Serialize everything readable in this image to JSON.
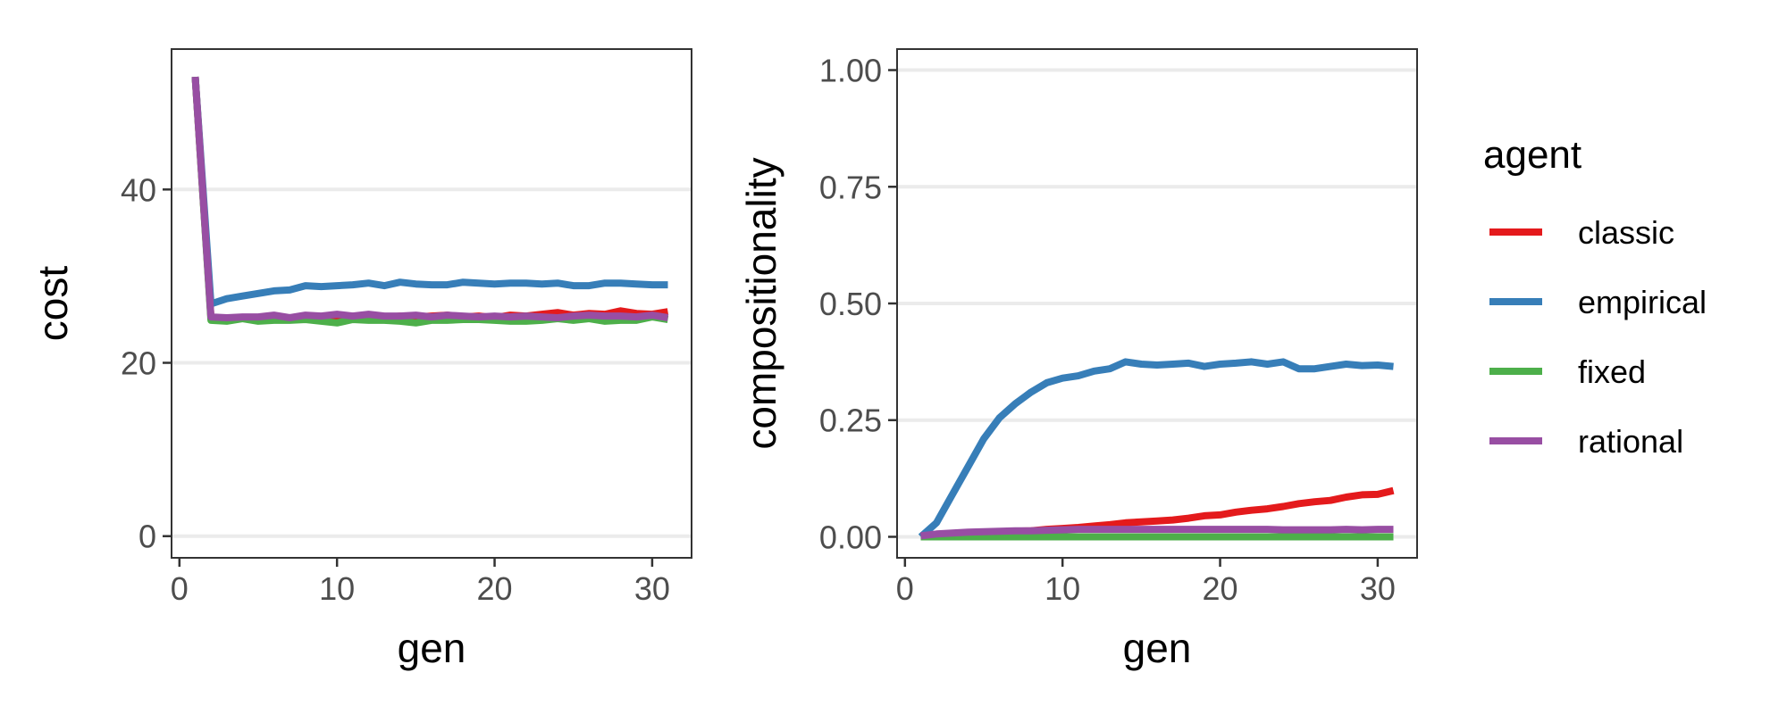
{
  "chart_data": [
    {
      "type": "line",
      "xlabel": "gen",
      "ylabel": "cost",
      "xlim": [
        -0.5,
        32.5
      ],
      "ylim": [
        -2.5,
        56.2
      ],
      "xticks": [
        0,
        10,
        20,
        30
      ],
      "yticks": [
        0,
        20,
        40
      ],
      "grid": true,
      "x": [
        1,
        2,
        3,
        4,
        5,
        6,
        7,
        8,
        9,
        10,
        11,
        12,
        13,
        14,
        15,
        16,
        17,
        18,
        19,
        20,
        21,
        22,
        23,
        24,
        25,
        26,
        27,
        28,
        29,
        30,
        31
      ],
      "series": [
        {
          "name": "classic",
          "color": "#E41A1C",
          "values": [
            53,
            25.2,
            25.1,
            25.2,
            25.0,
            25.3,
            25.1,
            25.2,
            25.3,
            25.4,
            25.1,
            25.3,
            25.2,
            25.4,
            25.3,
            25.4,
            25.5,
            25.3,
            25.4,
            25.2,
            25.5,
            25.4,
            25.6,
            25.8,
            25.5,
            25.7,
            25.6,
            26.0,
            25.7,
            25.6,
            25.9
          ]
        },
        {
          "name": "empirical",
          "color": "#377EB8",
          "values": [
            53,
            26.8,
            27.4,
            27.7,
            28.0,
            28.3,
            28.4,
            28.9,
            28.8,
            28.9,
            29.0,
            29.2,
            28.9,
            29.3,
            29.1,
            29.0,
            29.0,
            29.3,
            29.2,
            29.1,
            29.2,
            29.2,
            29.1,
            29.2,
            28.9,
            28.9,
            29.2,
            29.2,
            29.1,
            29.0,
            29.0
          ]
        },
        {
          "name": "fixed",
          "color": "#4DAF4A",
          "values": [
            53,
            24.9,
            24.8,
            25.1,
            24.8,
            24.9,
            24.9,
            25.0,
            24.8,
            24.6,
            25.0,
            24.9,
            24.9,
            24.8,
            24.6,
            24.9,
            24.9,
            25.0,
            25.0,
            24.9,
            24.8,
            24.8,
            24.9,
            25.1,
            24.9,
            25.1,
            24.8,
            24.9,
            24.9,
            25.3,
            25.0
          ]
        },
        {
          "name": "rational",
          "color": "#984EA3",
          "values": [
            53,
            25.3,
            25.2,
            25.3,
            25.3,
            25.5,
            25.2,
            25.5,
            25.4,
            25.6,
            25.4,
            25.6,
            25.4,
            25.4,
            25.5,
            25.3,
            25.5,
            25.4,
            25.3,
            25.4,
            25.3,
            25.4,
            25.3,
            25.2,
            25.4,
            25.5,
            25.4,
            25.4,
            25.3,
            25.5,
            25.2
          ]
        }
      ]
    },
    {
      "type": "line",
      "xlabel": "gen",
      "ylabel": "compositionality",
      "xlim": [
        -0.5,
        32.5
      ],
      "ylim": [
        -0.045,
        1.045
      ],
      "xticks": [
        0,
        10,
        20,
        30
      ],
      "yticks": [
        0.0,
        0.25,
        0.5,
        0.75,
        1.0
      ],
      "ytick_labels": [
        "0.00",
        "0.25",
        "0.50",
        "0.75",
        "1.00"
      ],
      "grid": true,
      "x": [
        1,
        2,
        3,
        4,
        5,
        6,
        7,
        8,
        9,
        10,
        11,
        12,
        13,
        14,
        15,
        16,
        17,
        18,
        19,
        20,
        21,
        22,
        23,
        24,
        25,
        26,
        27,
        28,
        29,
        30,
        31
      ],
      "series": [
        {
          "name": "classic",
          "color": "#E41A1C",
          "values": [
            0.002,
            0.004,
            0.006,
            0.008,
            0.009,
            0.01,
            0.012,
            0.013,
            0.016,
            0.018,
            0.02,
            0.023,
            0.026,
            0.03,
            0.032,
            0.034,
            0.036,
            0.04,
            0.045,
            0.047,
            0.053,
            0.057,
            0.06,
            0.065,
            0.071,
            0.075,
            0.078,
            0.085,
            0.09,
            0.091,
            0.099
          ]
        },
        {
          "name": "empirical",
          "color": "#377EB8",
          "values": [
            0.0,
            0.03,
            0.09,
            0.15,
            0.21,
            0.255,
            0.285,
            0.31,
            0.33,
            0.34,
            0.345,
            0.355,
            0.36,
            0.375,
            0.37,
            0.368,
            0.37,
            0.372,
            0.365,
            0.37,
            0.372,
            0.375,
            0.37,
            0.375,
            0.36,
            0.36,
            0.365,
            0.37,
            0.367,
            0.368,
            0.365
          ]
        },
        {
          "name": "fixed",
          "color": "#4DAF4A",
          "values": [
            0,
            0,
            0,
            0,
            0,
            0,
            0,
            0,
            0,
            0,
            0,
            0,
            0,
            0,
            0,
            0,
            0,
            0,
            0,
            0,
            0,
            0,
            0,
            0,
            0,
            0,
            0,
            0,
            0,
            0,
            0
          ]
        },
        {
          "name": "rational",
          "color": "#984EA3",
          "values": [
            0.002,
            0.006,
            0.008,
            0.01,
            0.011,
            0.012,
            0.013,
            0.013,
            0.014,
            0.015,
            0.016,
            0.016,
            0.016,
            0.016,
            0.016,
            0.016,
            0.016,
            0.016,
            0.016,
            0.016,
            0.016,
            0.016,
            0.016,
            0.015,
            0.015,
            0.015,
            0.015,
            0.016,
            0.015,
            0.016,
            0.016
          ]
        }
      ]
    }
  ],
  "legend": {
    "title": "agent",
    "items": [
      {
        "label": "classic",
        "color": "#E41A1C"
      },
      {
        "label": "empirical",
        "color": "#377EB8"
      },
      {
        "label": "fixed",
        "color": "#4DAF4A"
      },
      {
        "label": "rational",
        "color": "#984EA3"
      }
    ]
  }
}
